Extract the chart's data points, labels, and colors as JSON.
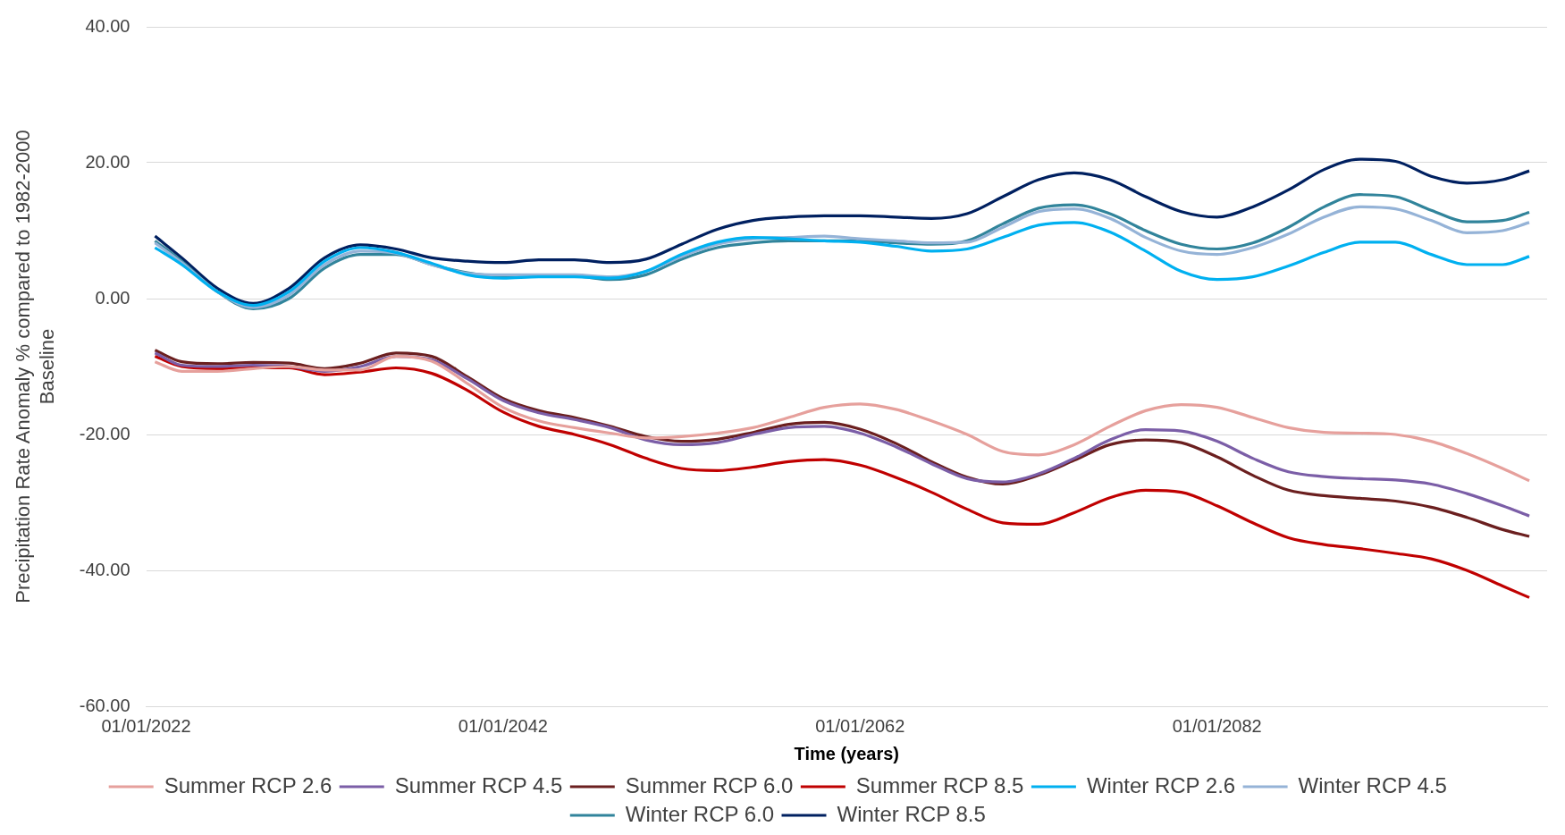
{
  "chart_data": {
    "type": "line",
    "xlabel": "Time (years)",
    "ylabel": "Precipitation Rate Anomaly % compared to 1982-2000 Baseline",
    "x": [
      "2022-07",
      "2024",
      "2026",
      "2028",
      "2030",
      "2032",
      "2034",
      "2036",
      "2038",
      "2040",
      "2042",
      "2044",
      "2046",
      "2048",
      "2050",
      "2052",
      "2054",
      "2056",
      "2058",
      "2060",
      "2062",
      "2064",
      "2066",
      "2068",
      "2070",
      "2072",
      "2074",
      "2076",
      "2078",
      "2080",
      "2082",
      "2084",
      "2086",
      "2088",
      "2090",
      "2092",
      "2094",
      "2096",
      "2098",
      "2099-07"
    ],
    "xlim": [
      "2022-01-01",
      "2100-07-01"
    ],
    "xticks": [
      {
        "value": "2022-01-01",
        "label": "01/01/2022"
      },
      {
        "value": "2042-01-01",
        "label": "01/01/2042"
      },
      {
        "value": "2062-01-01",
        "label": "01/01/2062"
      },
      {
        "value": "2082-01-01",
        "label": "01/01/2082"
      }
    ],
    "ylim": [
      -60,
      40
    ],
    "yticks": [
      {
        "value": -60,
        "label": "-60.00"
      },
      {
        "value": -40,
        "label": "-40.00"
      },
      {
        "value": -20,
        "label": "-20.00"
      },
      {
        "value": 0,
        "label": "0.00"
      },
      {
        "value": 20,
        "label": "20.00"
      },
      {
        "value": 40,
        "label": "40.00"
      }
    ],
    "grid": "y",
    "legend": "bottom",
    "marker": "none",
    "line_style": "solid",
    "series": [
      {
        "name": "Summer RCP 2.6",
        "color": "#e6a09c",
        "values": [
          -9.3,
          -10.7,
          -10.7,
          -10.3,
          -10,
          -10.5,
          -10.5,
          -8.5,
          -9.2,
          -12.5,
          -16,
          -18,
          -19,
          -19.8,
          -20.5,
          -20.3,
          -19.8,
          -19,
          -17.5,
          -16,
          -15.5,
          -16.3,
          -18,
          -20,
          -22.5,
          -23,
          -21.5,
          -18.8,
          -16.5,
          -15.6,
          -16,
          -17.5,
          -19,
          -19.7,
          -19.8,
          -20,
          -21,
          -22.8,
          -25,
          -26.8
        ]
      },
      {
        "name": "Summer RCP 4.5",
        "color": "#7b5ea7",
        "values": [
          -8,
          -9.8,
          -10,
          -9.8,
          -10,
          -10.7,
          -10,
          -8.5,
          -9,
          -11.8,
          -15,
          -16.8,
          -17.8,
          -19,
          -20.8,
          -21.5,
          -21.2,
          -20,
          -19,
          -18.8,
          -19.8,
          -21.8,
          -24.3,
          -26.5,
          -27,
          -25.8,
          -23.5,
          -20.8,
          -19.3,
          -19.5,
          -21,
          -23.5,
          -25.5,
          -26.2,
          -26.5,
          -26.7,
          -27.3,
          -28.7,
          -30.5,
          -32
        ]
      },
      {
        "name": "Summer RCP 6.0",
        "color": "#6b1f1f",
        "values": [
          -7.6,
          -9.3,
          -9.6,
          -9.4,
          -9.5,
          -10.3,
          -9.5,
          -8,
          -8.5,
          -11.5,
          -14.7,
          -16.5,
          -17.5,
          -18.8,
          -20.3,
          -21,
          -20.7,
          -19.7,
          -18.5,
          -18.2,
          -19.2,
          -21.3,
          -24,
          -26.3,
          -27.3,
          -26,
          -23.8,
          -21.5,
          -20.8,
          -21.2,
          -23.3,
          -26,
          -28.2,
          -29,
          -29.4,
          -29.8,
          -30.7,
          -32.2,
          -34,
          -35
        ]
      },
      {
        "name": "Summer RCP 8.5",
        "color": "#c00000",
        "values": [
          -8.5,
          -10,
          -10.3,
          -10.2,
          -10.2,
          -11.2,
          -10.8,
          -10.2,
          -11,
          -13.5,
          -16.7,
          -18.8,
          -20,
          -21.5,
          -23.5,
          -25,
          -25.3,
          -24.8,
          -24,
          -23.7,
          -24.5,
          -26.3,
          -28.5,
          -31,
          -33,
          -33.2,
          -31.5,
          -29.3,
          -28.2,
          -28.5,
          -30.5,
          -33,
          -35.2,
          -36.2,
          -36.8,
          -37.5,
          -38.3,
          -40,
          -42.3,
          -44
        ]
      },
      {
        "name": "Winter RCP 2.6",
        "color": "#00b0f0",
        "values": [
          7.5,
          5,
          1,
          -1,
          1,
          5.5,
          7.5,
          6.8,
          5.2,
          3.5,
          3,
          3.2,
          3.2,
          3,
          4,
          6.5,
          8.3,
          9,
          8.8,
          8.5,
          8.3,
          7.7,
          7,
          7.3,
          9,
          10.8,
          11.2,
          9.8,
          7,
          4,
          2.8,
          3.2,
          4.8,
          6.8,
          8.3,
          8.3,
          6.5,
          5,
          5,
          6.2
        ]
      },
      {
        "name": "Winter RCP 4.5",
        "color": "#95b3d7",
        "values": [
          8.2,
          5.3,
          1,
          -1.3,
          0.5,
          5,
          7,
          6.7,
          5,
          3.7,
          3.5,
          3.5,
          3.5,
          3.2,
          4,
          6.2,
          8,
          8.8,
          9,
          9.2,
          8.8,
          8.5,
          8.2,
          8.3,
          10.5,
          12.8,
          13.2,
          11.8,
          9,
          7,
          6.5,
          7.5,
          9.5,
          12,
          13.5,
          13.2,
          11.5,
          9.7,
          10,
          11.2
        ]
      },
      {
        "name": "Winter RCP 6.0",
        "color": "#31849b",
        "values": [
          8.5,
          5.5,
          1,
          -1.5,
          0,
          4.5,
          6.5,
          6.5,
          5,
          3.8,
          3.3,
          3.3,
          3.3,
          2.8,
          3.5,
          5.8,
          7.5,
          8.2,
          8.5,
          8.5,
          8.5,
          8.2,
          8,
          8.5,
          11,
          13.3,
          13.8,
          12.5,
          10,
          8,
          7.3,
          8.2,
          10.5,
          13.5,
          15.3,
          15,
          13,
          11.3,
          11.5,
          12.7
        ]
      },
      {
        "name": "Winter RCP 8.5",
        "color": "#002060",
        "values": [
          9.2,
          6,
          1.5,
          -0.7,
          1.5,
          6,
          7.9,
          7.3,
          6,
          5.5,
          5.3,
          5.7,
          5.7,
          5.3,
          5.8,
          8,
          10.2,
          11.5,
          12,
          12.2,
          12.2,
          12,
          11.8,
          12.5,
          15,
          17.5,
          18.5,
          17.5,
          15,
          12.8,
          12,
          13.5,
          16,
          19,
          20.5,
          20.2,
          18,
          17,
          17.5,
          18.8
        ]
      }
    ]
  }
}
